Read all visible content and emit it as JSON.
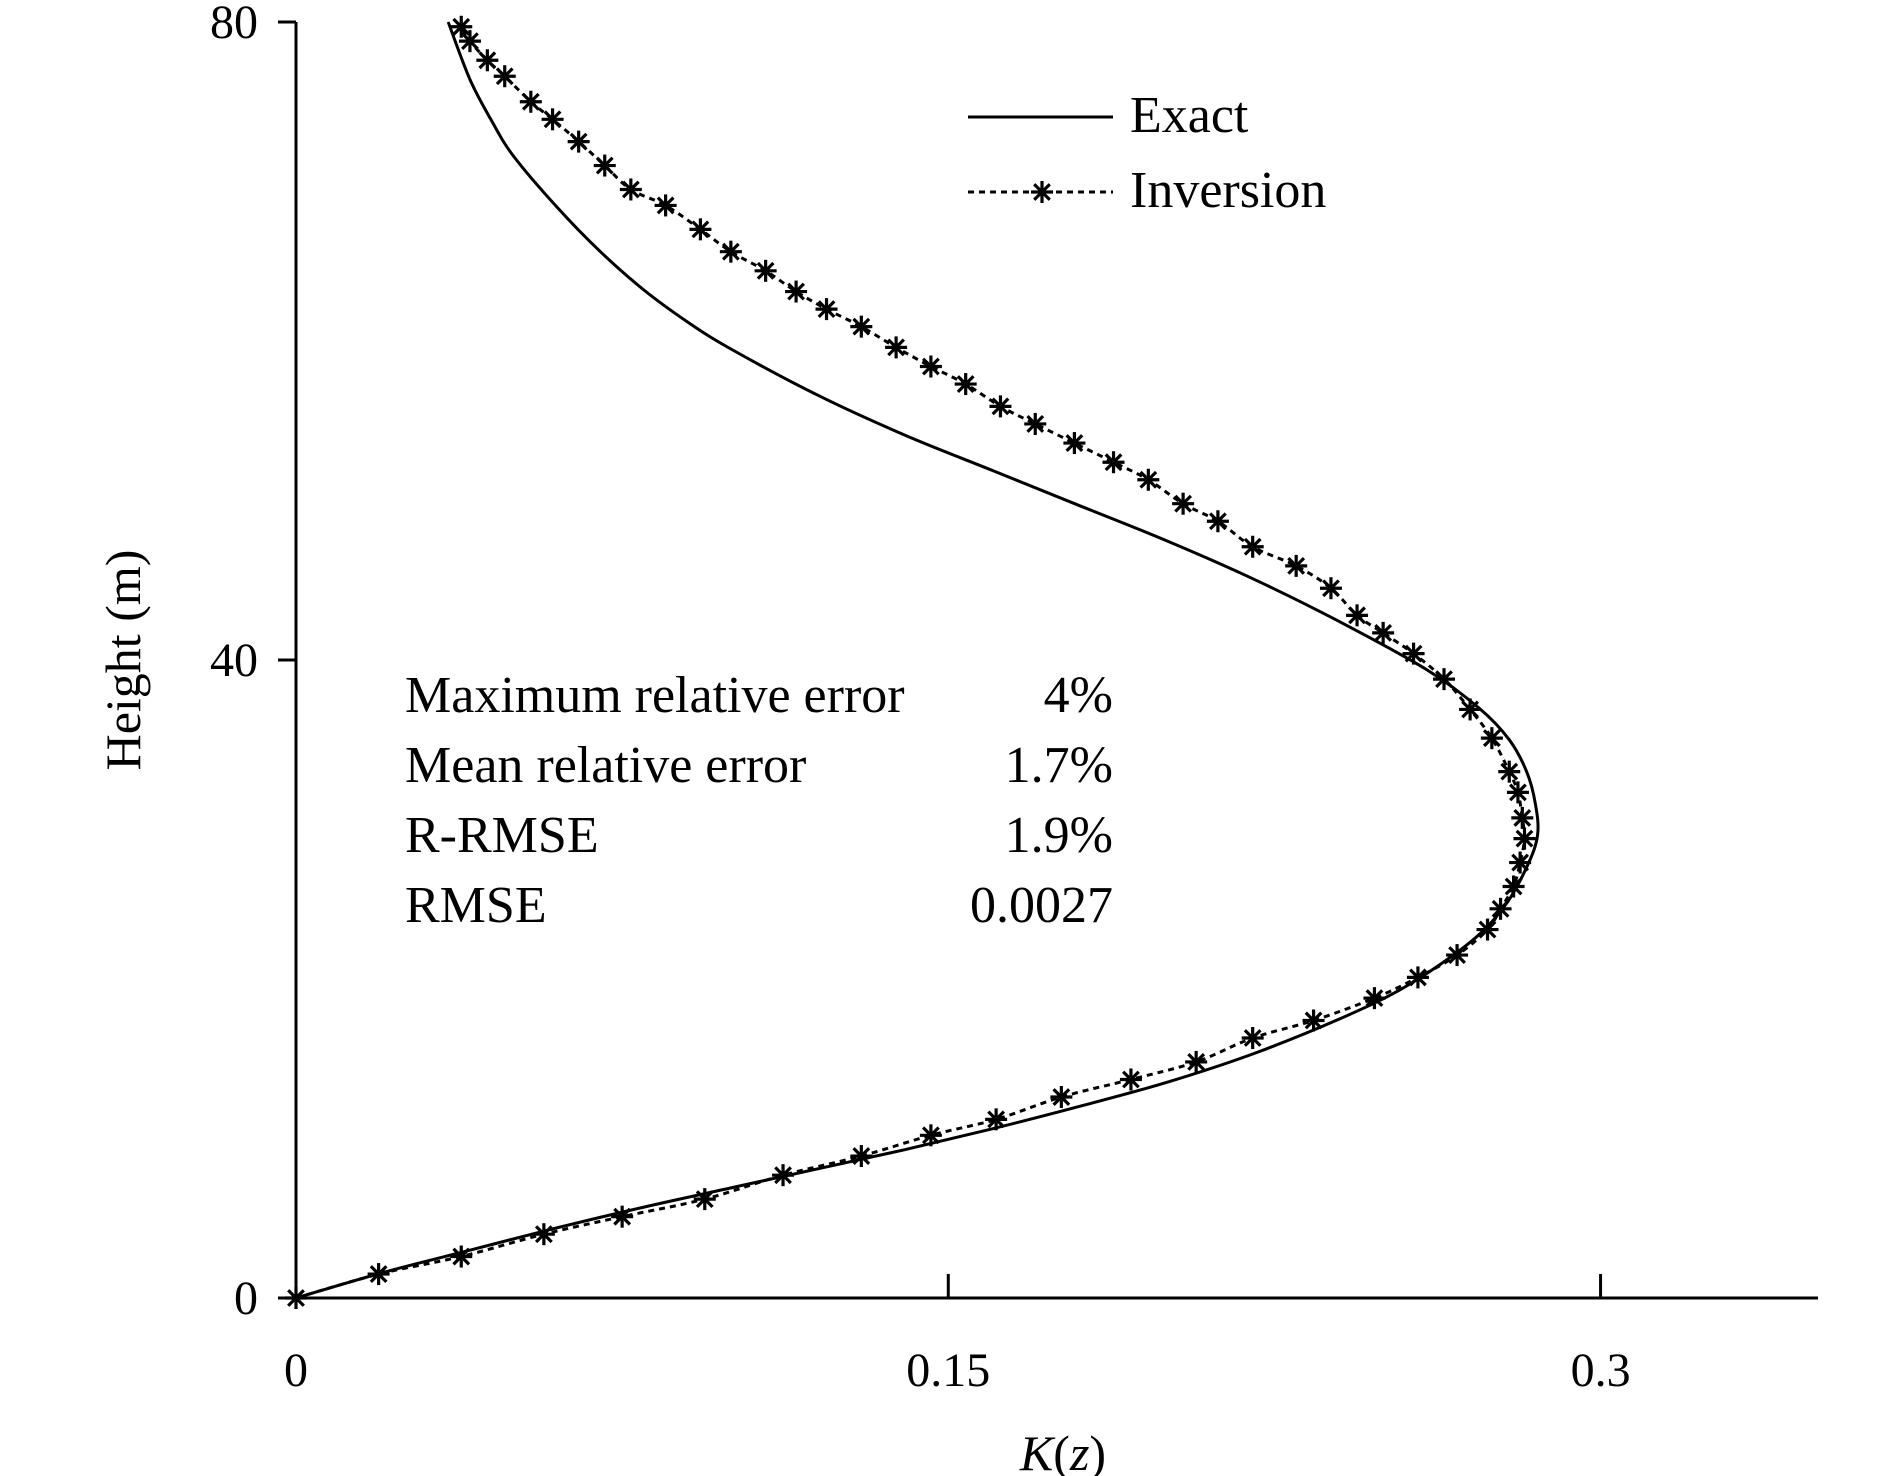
{
  "chart_data": {
    "type": "line",
    "orientation": "x-horizontal, height-vertical",
    "xlabel": {
      "italic": "K",
      "plain": "(",
      "italic2": "z",
      "plain2": ")"
    },
    "ylabel": "Height (m)",
    "xlim": [
      0,
      0.35
    ],
    "ylim": [
      0,
      80
    ],
    "xticks": [
      0,
      0.15,
      0.3
    ],
    "xtick_labels": [
      "0",
      "0.15",
      "0.3"
    ],
    "yticks": [
      0,
      40,
      80
    ],
    "ytick_labels": [
      "0",
      "40",
      "80"
    ],
    "grid": false,
    "legend": {
      "position": "top-right",
      "entries": [
        {
          "label": "Exact",
          "style": "solid"
        },
        {
          "label": "Inversion",
          "style": "dotted-asterisk"
        }
      ]
    },
    "stats": [
      {
        "label": "Maximum relative error",
        "value": "4%"
      },
      {
        "label": "Mean relative error",
        "value": "1.7%"
      },
      {
        "label": "R-RMSE",
        "value": "1.9%"
      },
      {
        "label": "RMSE",
        "value": "0.0027"
      }
    ],
    "series": [
      {
        "name": "Exact",
        "style": "solid",
        "points": [
          [
            0,
            0
          ],
          [
            0.02,
            1.6
          ],
          [
            0.04,
            3.0
          ],
          [
            0.06,
            4.4
          ],
          [
            0.08,
            5.7
          ],
          [
            0.1,
            6.9
          ],
          [
            0.12,
            8.1
          ],
          [
            0.14,
            9.3
          ],
          [
            0.16,
            10.6
          ],
          [
            0.18,
            12.0
          ],
          [
            0.2,
            13.5
          ],
          [
            0.22,
            15.3
          ],
          [
            0.24,
            17.5
          ],
          [
            0.255,
            19.5
          ],
          [
            0.27,
            22.3
          ],
          [
            0.278,
            24.6
          ],
          [
            0.283,
            27.0
          ],
          [
            0.2855,
            29.0
          ],
          [
            0.285,
            31.0
          ],
          [
            0.283,
            33.0
          ],
          [
            0.279,
            35.0
          ],
          [
            0.272,
            37.0
          ],
          [
            0.26,
            39.4
          ],
          [
            0.24,
            42.4
          ],
          [
            0.22,
            45.1
          ],
          [
            0.2,
            47.5
          ],
          [
            0.18,
            49.7
          ],
          [
            0.16,
            51.9
          ],
          [
            0.14,
            54.1
          ],
          [
            0.12,
            56.6
          ],
          [
            0.1,
            59.5
          ],
          [
            0.09,
            61.2
          ],
          [
            0.08,
            63.2
          ],
          [
            0.07,
            65.6
          ],
          [
            0.06,
            68.4
          ],
          [
            0.05,
            71.6
          ],
          [
            0.045,
            73.8
          ],
          [
            0.04,
            76.4
          ],
          [
            0.035,
            80.0
          ]
        ]
      },
      {
        "name": "Inversion",
        "style": "dotted-asterisk",
        "points": [
          [
            0,
            0
          ],
          [
            0.019,
            1.5
          ],
          [
            0.038,
            2.6
          ],
          [
            0.057,
            4.0
          ],
          [
            0.075,
            5.1
          ],
          [
            0.094,
            6.2
          ],
          [
            0.112,
            7.7
          ],
          [
            0.13,
            8.9
          ],
          [
            0.146,
            10.2
          ],
          [
            0.161,
            11.2
          ],
          [
            0.176,
            12.6
          ],
          [
            0.192,
            13.7
          ],
          [
            0.207,
            14.8
          ],
          [
            0.22,
            16.3
          ],
          [
            0.234,
            17.4
          ],
          [
            0.248,
            18.8
          ],
          [
            0.258,
            20.1
          ],
          [
            0.267,
            21.5
          ],
          [
            0.274,
            23.1
          ],
          [
            0.277,
            24.4
          ],
          [
            0.28,
            25.8
          ],
          [
            0.2815,
            27.3
          ],
          [
            0.2825,
            28.8
          ],
          [
            0.282,
            30.1
          ],
          [
            0.281,
            31.7
          ],
          [
            0.279,
            33.0
          ],
          [
            0.275,
            35.1
          ],
          [
            0.27,
            36.9
          ],
          [
            0.264,
            38.8
          ],
          [
            0.257,
            40.4
          ],
          [
            0.25,
            41.7
          ],
          [
            0.244,
            42.8
          ],
          [
            0.238,
            44.5
          ],
          [
            0.23,
            45.9
          ],
          [
            0.22,
            47.1
          ],
          [
            0.212,
            48.7
          ],
          [
            0.204,
            49.8
          ],
          [
            0.196,
            51.3
          ],
          [
            0.188,
            52.4
          ],
          [
            0.179,
            53.6
          ],
          [
            0.17,
            54.8
          ],
          [
            0.162,
            55.9
          ],
          [
            0.154,
            57.3
          ],
          [
            0.146,
            58.4
          ],
          [
            0.138,
            59.6
          ],
          [
            0.13,
            60.9
          ],
          [
            0.122,
            62.0
          ],
          [
            0.115,
            63.1
          ],
          [
            0.108,
            64.4
          ],
          [
            0.1,
            65.6
          ],
          [
            0.093,
            67.0
          ],
          [
            0.085,
            68.5
          ],
          [
            0.077,
            69.5
          ],
          [
            0.071,
            71.0
          ],
          [
            0.065,
            72.5
          ],
          [
            0.059,
            73.9
          ],
          [
            0.054,
            75.0
          ],
          [
            0.048,
            76.6
          ],
          [
            0.044,
            77.6
          ],
          [
            0.04,
            78.8
          ],
          [
            0.038,
            79.7
          ]
        ]
      }
    ]
  }
}
